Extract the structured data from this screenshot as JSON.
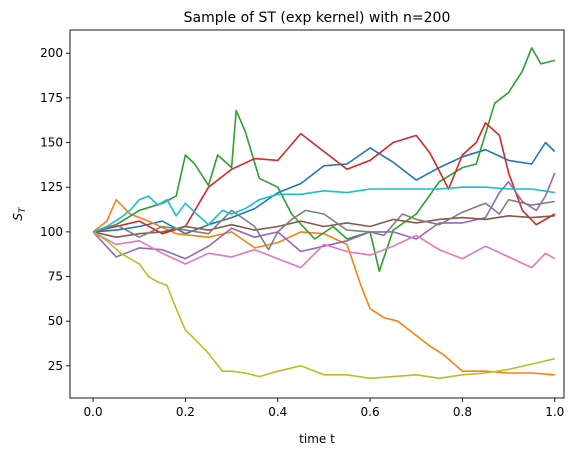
{
  "chart_data": {
    "type": "line",
    "title": "Sample of ST (exp kernel) with n=200",
    "xlabel": "time t",
    "ylabel_main": "S",
    "ylabel_sub": "T",
    "xlim": [
      -0.05,
      1.02
    ],
    "ylim": [
      7,
      213
    ],
    "x_ticks": [
      0.0,
      0.2,
      0.4,
      0.6,
      0.8,
      1.0
    ],
    "x_tick_labels": [
      "0.0",
      "0.2",
      "0.4",
      "0.6",
      "0.8",
      "1.0"
    ],
    "y_ticks": [
      25,
      50,
      75,
      100,
      125,
      150,
      175,
      200
    ],
    "y_tick_labels": [
      "25",
      "50",
      "75",
      "100",
      "125",
      "150",
      "175",
      "200"
    ],
    "grid": false,
    "series": [
      {
        "color": "#1f77b4",
        "points": [
          [
            0,
            100
          ],
          [
            0.05,
            101
          ],
          [
            0.1,
            103
          ],
          [
            0.15,
            106
          ],
          [
            0.2,
            99
          ],
          [
            0.25,
            104
          ],
          [
            0.3,
            108
          ],
          [
            0.35,
            113
          ],
          [
            0.4,
            122
          ],
          [
            0.45,
            127
          ],
          [
            0.5,
            137
          ],
          [
            0.55,
            138
          ],
          [
            0.6,
            147
          ],
          [
            0.65,
            139
          ],
          [
            0.7,
            129
          ],
          [
            0.75,
            136
          ],
          [
            0.8,
            142
          ],
          [
            0.85,
            146
          ],
          [
            0.9,
            140
          ],
          [
            0.95,
            138
          ],
          [
            0.98,
            150
          ],
          [
            1.0,
            145
          ]
        ]
      },
      {
        "color": "#ff7f0e",
        "points": [
          [
            0,
            100
          ],
          [
            0.03,
            106
          ],
          [
            0.05,
            118
          ],
          [
            0.08,
            110
          ],
          [
            0.12,
            106
          ],
          [
            0.18,
            99
          ],
          [
            0.25,
            97
          ],
          [
            0.3,
            100
          ],
          [
            0.35,
            91
          ],
          [
            0.4,
            94
          ],
          [
            0.45,
            100
          ],
          [
            0.5,
            99
          ],
          [
            0.55,
            93
          ],
          [
            0.58,
            70
          ],
          [
            0.6,
            57
          ],
          [
            0.63,
            52
          ],
          [
            0.66,
            50
          ],
          [
            0.7,
            42
          ],
          [
            0.73,
            36
          ],
          [
            0.76,
            31
          ],
          [
            0.8,
            22
          ],
          [
            0.85,
            22
          ],
          [
            0.9,
            21
          ],
          [
            0.95,
            21
          ],
          [
            1.0,
            20
          ]
        ]
      },
      {
        "color": "#2ca02c",
        "points": [
          [
            0,
            100
          ],
          [
            0.05,
            104
          ],
          [
            0.1,
            112
          ],
          [
            0.15,
            116
          ],
          [
            0.18,
            120
          ],
          [
            0.2,
            143
          ],
          [
            0.22,
            138
          ],
          [
            0.25,
            126
          ],
          [
            0.27,
            143
          ],
          [
            0.3,
            136
          ],
          [
            0.31,
            168
          ],
          [
            0.33,
            156
          ],
          [
            0.36,
            130
          ],
          [
            0.4,
            125
          ],
          [
            0.43,
            110
          ],
          [
            0.48,
            96
          ],
          [
            0.52,
            103
          ],
          [
            0.55,
            96
          ],
          [
            0.6,
            100
          ],
          [
            0.62,
            78
          ],
          [
            0.65,
            101
          ],
          [
            0.7,
            110
          ],
          [
            0.75,
            128
          ],
          [
            0.8,
            136
          ],
          [
            0.83,
            138
          ],
          [
            0.87,
            172
          ],
          [
            0.9,
            178
          ],
          [
            0.93,
            190
          ],
          [
            0.95,
            203
          ],
          [
            0.97,
            194
          ],
          [
            1.0,
            196
          ]
        ]
      },
      {
        "color": "#d62728",
        "points": [
          [
            0,
            100
          ],
          [
            0.05,
            103
          ],
          [
            0.1,
            106
          ],
          [
            0.15,
            99
          ],
          [
            0.2,
            103
          ],
          [
            0.25,
            125
          ],
          [
            0.3,
            135
          ],
          [
            0.35,
            141
          ],
          [
            0.4,
            140
          ],
          [
            0.45,
            155
          ],
          [
            0.5,
            145
          ],
          [
            0.55,
            135
          ],
          [
            0.6,
            140
          ],
          [
            0.65,
            150
          ],
          [
            0.7,
            154
          ],
          [
            0.73,
            144
          ],
          [
            0.77,
            124
          ],
          [
            0.8,
            143
          ],
          [
            0.83,
            150
          ],
          [
            0.85,
            161
          ],
          [
            0.88,
            154
          ],
          [
            0.9,
            133
          ],
          [
            0.93,
            112
          ],
          [
            0.96,
            104
          ],
          [
            1.0,
            110
          ]
        ]
      },
      {
        "color": "#9467bd",
        "points": [
          [
            0,
            100
          ],
          [
            0.05,
            86
          ],
          [
            0.1,
            91
          ],
          [
            0.15,
            90
          ],
          [
            0.2,
            85
          ],
          [
            0.25,
            92
          ],
          [
            0.3,
            102
          ],
          [
            0.35,
            97
          ],
          [
            0.4,
            100
          ],
          [
            0.45,
            89
          ],
          [
            0.5,
            92
          ],
          [
            0.55,
            95
          ],
          [
            0.6,
            100
          ],
          [
            0.65,
            100
          ],
          [
            0.7,
            96
          ],
          [
            0.75,
            105
          ],
          [
            0.8,
            105
          ],
          [
            0.85,
            108
          ],
          [
            0.88,
            122
          ],
          [
            0.9,
            128
          ],
          [
            0.93,
            117
          ],
          [
            0.96,
            112
          ],
          [
            0.98,
            120
          ],
          [
            1.0,
            133
          ]
        ]
      },
      {
        "color": "#8c564b",
        "points": [
          [
            0,
            100
          ],
          [
            0.05,
            97
          ],
          [
            0.1,
            99
          ],
          [
            0.15,
            100
          ],
          [
            0.2,
            103
          ],
          [
            0.25,
            101
          ],
          [
            0.3,
            104
          ],
          [
            0.35,
            101
          ],
          [
            0.4,
            103
          ],
          [
            0.45,
            106
          ],
          [
            0.5,
            103
          ],
          [
            0.55,
            105
          ],
          [
            0.6,
            103
          ],
          [
            0.65,
            107
          ],
          [
            0.7,
            105
          ],
          [
            0.75,
            107
          ],
          [
            0.8,
            108
          ],
          [
            0.85,
            107
          ],
          [
            0.9,
            109
          ],
          [
            0.95,
            108
          ],
          [
            1.0,
            109
          ]
        ]
      },
      {
        "color": "#e377c2",
        "points": [
          [
            0,
            100
          ],
          [
            0.05,
            93
          ],
          [
            0.1,
            95
          ],
          [
            0.15,
            88
          ],
          [
            0.2,
            82
          ],
          [
            0.25,
            88
          ],
          [
            0.3,
            86
          ],
          [
            0.35,
            90
          ],
          [
            0.4,
            85
          ],
          [
            0.45,
            80
          ],
          [
            0.5,
            93
          ],
          [
            0.55,
            89
          ],
          [
            0.6,
            87
          ],
          [
            0.65,
            92
          ],
          [
            0.7,
            98
          ],
          [
            0.75,
            90
          ],
          [
            0.8,
            85
          ],
          [
            0.85,
            92
          ],
          [
            0.9,
            86
          ],
          [
            0.95,
            80
          ],
          [
            0.98,
            88
          ],
          [
            1.0,
            85
          ]
        ]
      },
      {
        "color": "#7f7f7f",
        "points": [
          [
            0,
            100
          ],
          [
            0.05,
            104
          ],
          [
            0.1,
            97
          ],
          [
            0.15,
            103
          ],
          [
            0.2,
            101
          ],
          [
            0.25,
            99
          ],
          [
            0.3,
            112
          ],
          [
            0.35,
            103
          ],
          [
            0.38,
            90
          ],
          [
            0.4,
            100
          ],
          [
            0.43,
            107
          ],
          [
            0.46,
            112
          ],
          [
            0.5,
            110
          ],
          [
            0.55,
            101
          ],
          [
            0.6,
            100
          ],
          [
            0.63,
            98
          ],
          [
            0.67,
            110
          ],
          [
            0.7,
            107
          ],
          [
            0.75,
            104
          ],
          [
            0.8,
            111
          ],
          [
            0.85,
            116
          ],
          [
            0.88,
            110
          ],
          [
            0.9,
            118
          ],
          [
            0.95,
            115
          ],
          [
            1.0,
            117
          ]
        ]
      },
      {
        "color": "#bcbd22",
        "points": [
          [
            0,
            100
          ],
          [
            0.03,
            95
          ],
          [
            0.06,
            88
          ],
          [
            0.1,
            82
          ],
          [
            0.12,
            75
          ],
          [
            0.14,
            72
          ],
          [
            0.16,
            70
          ],
          [
            0.18,
            57
          ],
          [
            0.2,
            45
          ],
          [
            0.22,
            40
          ],
          [
            0.25,
            32
          ],
          [
            0.28,
            22
          ],
          [
            0.3,
            22
          ],
          [
            0.33,
            21
          ],
          [
            0.36,
            19
          ],
          [
            0.4,
            22
          ],
          [
            0.45,
            25
          ],
          [
            0.5,
            20
          ],
          [
            0.55,
            20
          ],
          [
            0.6,
            18
          ],
          [
            0.65,
            19
          ],
          [
            0.7,
            20
          ],
          [
            0.75,
            18
          ],
          [
            0.8,
            20
          ],
          [
            0.85,
            21
          ],
          [
            0.9,
            23
          ],
          [
            0.95,
            26
          ],
          [
            1.0,
            29
          ]
        ]
      },
      {
        "color": "#17becf",
        "points": [
          [
            0,
            100
          ],
          [
            0.03,
            103
          ],
          [
            0.06,
            108
          ],
          [
            0.08,
            112
          ],
          [
            0.1,
            118
          ],
          [
            0.12,
            120
          ],
          [
            0.14,
            115
          ],
          [
            0.16,
            118
          ],
          [
            0.18,
            109
          ],
          [
            0.2,
            116
          ],
          [
            0.22,
            111
          ],
          [
            0.25,
            104
          ],
          [
            0.28,
            112
          ],
          [
            0.3,
            110
          ],
          [
            0.33,
            113
          ],
          [
            0.36,
            118
          ],
          [
            0.4,
            121
          ],
          [
            0.45,
            121
          ],
          [
            0.5,
            123
          ],
          [
            0.55,
            122
          ],
          [
            0.6,
            124
          ],
          [
            0.65,
            124
          ],
          [
            0.7,
            124
          ],
          [
            0.75,
            124
          ],
          [
            0.8,
            125
          ],
          [
            0.85,
            125
          ],
          [
            0.9,
            124
          ],
          [
            0.95,
            124
          ],
          [
            1.0,
            122
          ]
        ]
      }
    ]
  }
}
